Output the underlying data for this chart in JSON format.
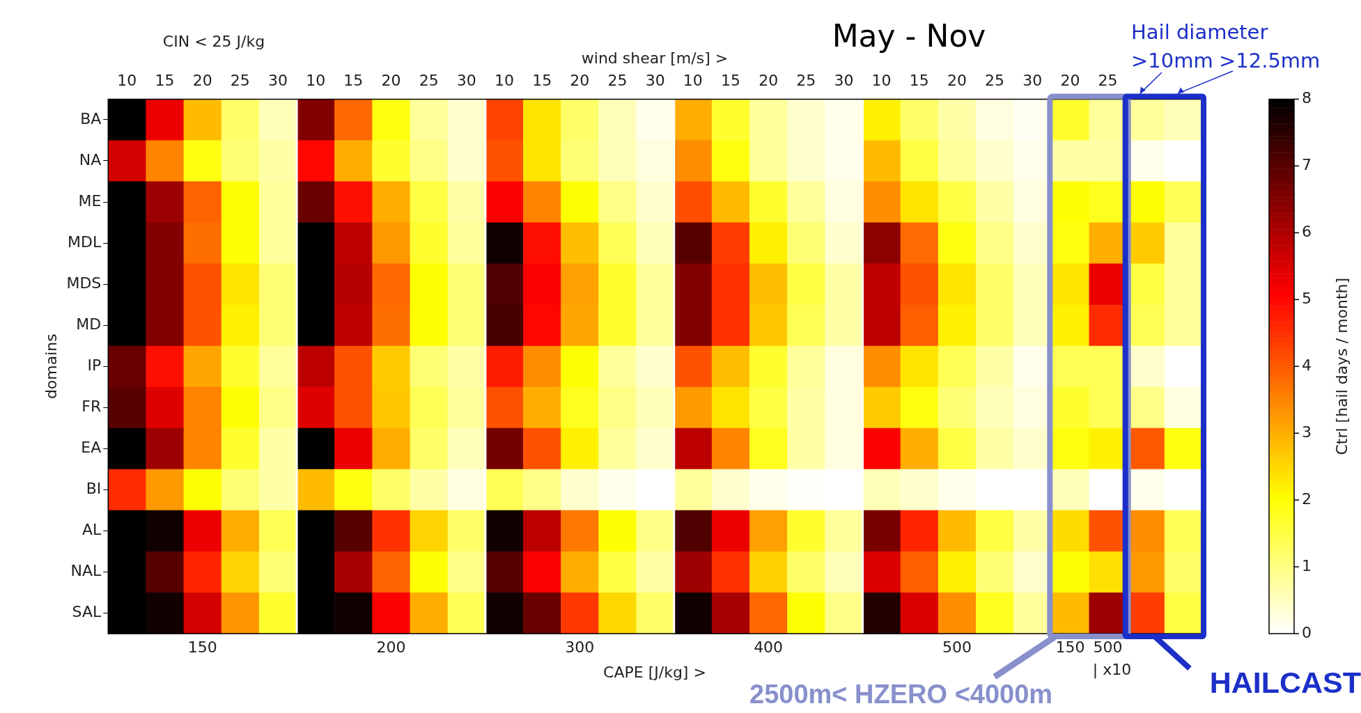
{
  "chart_data": {
    "type": "heatmap",
    "title": "May - Nov",
    "xlabel": "CAPE [J/kg]  >",
    "x2label": "wind shear [m/s]  >",
    "ylabel": "domains",
    "clabel": "Ctrl [hail days / month]",
    "categories": [
      "10",
      "15",
      "20",
      "25",
      "30",
      "10",
      "15",
      "20",
      "25",
      "30",
      "10",
      "15",
      "20",
      "25",
      "30",
      "10",
      "15",
      "20",
      "25",
      "30",
      "10",
      "15",
      "20",
      "25",
      "30",
      "20",
      "25",
      null,
      null
    ],
    "y_categories": [
      "BA",
      "NA",
      "ME",
      "MDL",
      "MDS",
      "MD",
      "IP",
      "FR",
      "EA",
      "BI",
      "AL",
      "NAL",
      "SAL"
    ],
    "cells": [
      [
        8,
        5.3,
        2.85,
        1.2,
        0.55,
        6.5,
        3.85,
        1.9,
        0.8,
        0.4,
        4.25,
        2.35,
        1.2,
        0.55,
        0.15,
        3.0,
        1.65,
        0.8,
        0.4,
        0.15,
        2.2,
        1.2,
        0.7,
        0.25,
        0.1,
        1.65,
        0.8,
        0.8,
        0.55
      ],
      [
        5.6,
        3.5,
        1.9,
        1.1,
        0.7,
        5.0,
        3.0,
        1.65,
        0.95,
        0.4,
        4.1,
        2.35,
        1.1,
        0.55,
        0.25,
        3.4,
        1.9,
        0.8,
        0.4,
        0.15,
        2.85,
        1.5,
        0.8,
        0.4,
        0.15,
        0.7,
        0.7,
        0.15,
        0
      ],
      [
        8,
        6.2,
        3.9,
        2.0,
        0.8,
        6.8,
        4.9,
        3.0,
        1.5,
        0.7,
        5.1,
        3.5,
        2.0,
        0.95,
        0.4,
        4.15,
        2.85,
        1.65,
        0.8,
        0.25,
        3.4,
        2.35,
        1.5,
        0.7,
        0.25,
        2.0,
        1.8,
        2.0,
        1.35
      ],
      [
        8,
        6.5,
        3.75,
        2.0,
        0.8,
        8,
        5.85,
        3.25,
        1.65,
        0.8,
        7.8,
        4.9,
        2.8,
        1.35,
        0.55,
        7.0,
        4.35,
        2.2,
        1.1,
        0.4,
        6.4,
        3.8,
        1.9,
        0.95,
        0.4,
        1.9,
        3.0,
        2.65,
        0.8
      ],
      [
        8,
        6.5,
        4.1,
        2.35,
        1.1,
        8,
        5.9,
        3.85,
        2.0,
        1.1,
        7.1,
        5.1,
        3.15,
        1.65,
        0.8,
        6.5,
        4.5,
        2.8,
        1.5,
        0.7,
        5.8,
        4.1,
        2.35,
        1.2,
        0.55,
        2.35,
        5.3,
        1.5,
        0.8
      ],
      [
        8,
        6.5,
        4.1,
        2.2,
        1.1,
        8,
        5.85,
        3.75,
        2.0,
        1.1,
        7.2,
        5.0,
        3.1,
        1.65,
        0.8,
        6.5,
        4.5,
        2.7,
        1.35,
        0.7,
        5.85,
        3.95,
        2.2,
        1.2,
        0.55,
        2.2,
        4.55,
        1.35,
        0.8
      ],
      [
        6.8,
        4.9,
        3.1,
        1.65,
        0.8,
        5.85,
        4.1,
        2.65,
        1.1,
        0.7,
        4.75,
        3.4,
        2.0,
        0.8,
        0.4,
        4.1,
        2.8,
        1.65,
        0.8,
        0.25,
        3.4,
        2.35,
        1.35,
        0.7,
        0.15,
        1.35,
        1.35,
        0.4,
        0
      ],
      [
        7.0,
        5.45,
        3.5,
        2.0,
        0.95,
        5.45,
        4.1,
        2.7,
        1.35,
        0.8,
        4.1,
        3.0,
        1.8,
        0.95,
        0.55,
        3.25,
        2.35,
        1.5,
        0.7,
        0.25,
        2.65,
        1.9,
        1.1,
        0.55,
        0.25,
        1.65,
        1.35,
        0.95,
        0.25
      ],
      [
        8,
        6.2,
        3.5,
        1.65,
        0.7,
        8,
        5.3,
        3.0,
        1.2,
        0.55,
        6.7,
        4.1,
        2.2,
        0.8,
        0.4,
        5.85,
        3.5,
        1.8,
        0.7,
        0.25,
        5.1,
        3.0,
        1.5,
        0.7,
        0.4,
        1.9,
        2.2,
        4.0,
        1.9
      ],
      [
        4.55,
        3.25,
        2.0,
        1.1,
        0.7,
        2.85,
        1.9,
        1.2,
        0.7,
        0.25,
        1.35,
        0.95,
        0.4,
        0.15,
        0,
        0.8,
        0.4,
        0.15,
        0.05,
        0,
        0.55,
        0.4,
        0.15,
        0,
        0,
        0.55,
        0,
        0.15,
        0
      ],
      [
        8,
        7.8,
        5.3,
        3.0,
        1.35,
        8,
        7.0,
        4.5,
        2.55,
        1.2,
        7.8,
        5.85,
        3.65,
        2.0,
        0.95,
        7.1,
        5.3,
        3.15,
        1.65,
        0.8,
        6.6,
        4.65,
        2.85,
        1.5,
        0.7,
        2.45,
        4.1,
        3.4,
        1.35
      ],
      [
        8,
        7.0,
        4.65,
        2.55,
        1.1,
        8,
        6.1,
        3.9,
        2.0,
        0.95,
        7.0,
        5.1,
        3.0,
        1.5,
        0.7,
        6.2,
        4.5,
        2.6,
        1.2,
        0.55,
        5.5,
        3.95,
        2.2,
        1.1,
        0.4,
        2.0,
        2.4,
        3.25,
        1.2
      ],
      [
        8,
        7.8,
        5.6,
        3.3,
        1.65,
        8,
        7.8,
        5.1,
        3.0,
        1.35,
        7.8,
        6.8,
        4.4,
        2.5,
        1.2,
        7.8,
        6.1,
        3.85,
        2.0,
        0.95,
        7.6,
        5.5,
        3.4,
        1.8,
        0.8,
        2.85,
        6.2,
        4.35,
        1.5
      ]
    ],
    "clim": [
      0,
      8
    ],
    "cticks": [
      0,
      1,
      2,
      3,
      4,
      5,
      6,
      7,
      8
    ],
    "annotations": [
      "CIN < 25 J/kg",
      "Hail diameter",
      ">10mm",
      ">12.5mm",
      "150",
      "200",
      "300",
      "400",
      "500",
      "150",
      "500",
      "| x10",
      "2500m< HZERO <4000m",
      "HAILCAST"
    ]
  }
}
